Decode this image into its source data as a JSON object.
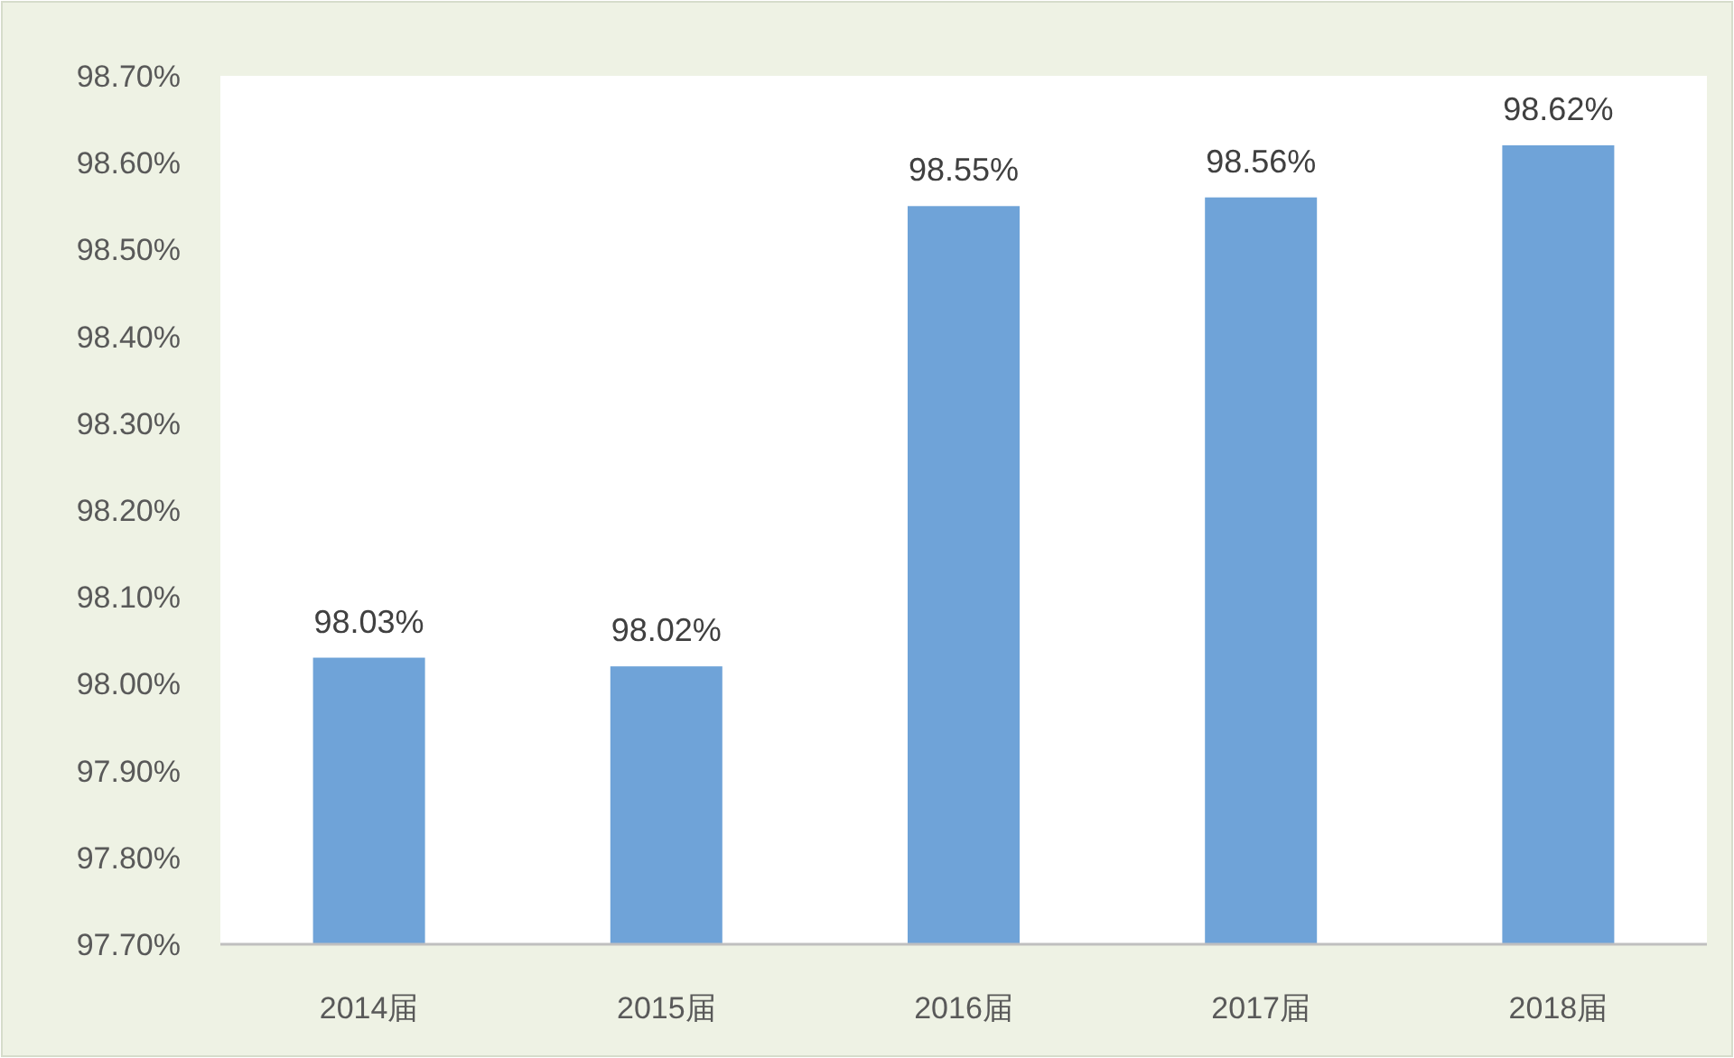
{
  "chart_data": {
    "type": "bar",
    "categories": [
      "2014届",
      "2015届",
      "2016届",
      "2017届",
      "2018届"
    ],
    "values": [
      98.03,
      98.02,
      98.55,
      98.56,
      98.62
    ],
    "value_labels": [
      "98.03%",
      "98.02%",
      "98.55%",
      "98.56%",
      "98.62%"
    ],
    "color": "#6fa3d8",
    "ylim": [
      97.7,
      98.7
    ],
    "yticks": [
      {
        "value": 97.7,
        "label": "97.70%"
      },
      {
        "value": 97.8,
        "label": "97.80%"
      },
      {
        "value": 97.9,
        "label": "97.90%"
      },
      {
        "value": 98.0,
        "label": "98.00%"
      },
      {
        "value": 98.1,
        "label": "98.10%"
      },
      {
        "value": 98.2,
        "label": "98.20%"
      },
      {
        "value": 98.3,
        "label": "98.30%"
      },
      {
        "value": 98.4,
        "label": "98.40%"
      },
      {
        "value": 98.5,
        "label": "98.50%"
      },
      {
        "value": 98.6,
        "label": "98.60%"
      },
      {
        "value": 98.7,
        "label": "98.70%"
      }
    ]
  }
}
